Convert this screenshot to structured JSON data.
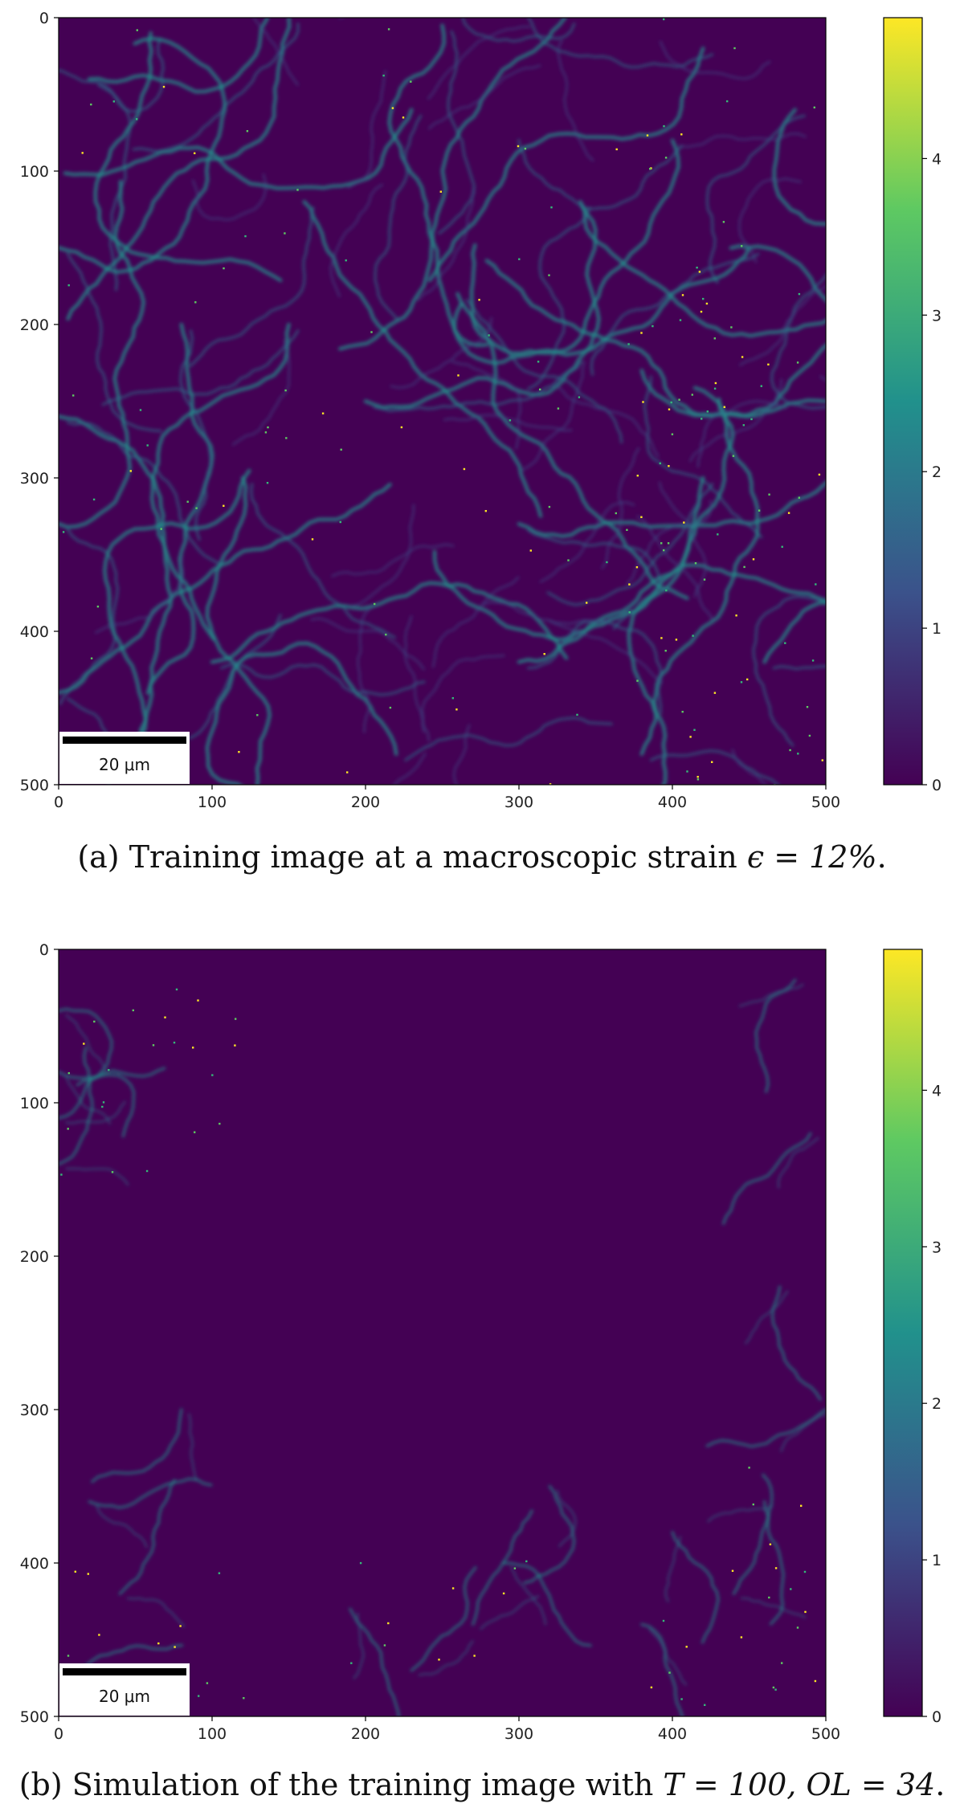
{
  "figures": [
    {
      "id": "a",
      "caption_prefix": "(a) Training image at a macroscopic strain ",
      "caption_math": "ϵ = 12%",
      "caption_suffix": ".",
      "scalebar_label": "20 μm",
      "field_variant": "training",
      "x_ticks": [
        "0",
        "100",
        "200",
        "300",
        "400",
        "500"
      ],
      "y_ticks": [
        "0",
        "100",
        "200",
        "300",
        "400",
        "500"
      ],
      "colorbar_ticks": [
        "0",
        "1",
        "2",
        "3",
        "4"
      ]
    },
    {
      "id": "b",
      "caption_prefix": "(b) Simulation of the training image with ",
      "caption_math": "T = 100, OL = 34",
      "caption_suffix": ".",
      "scalebar_label": "20 μm",
      "field_variant": "simulation",
      "x_ticks": [
        "0",
        "100",
        "200",
        "300",
        "400",
        "500"
      ],
      "y_ticks": [
        "0",
        "100",
        "200",
        "300",
        "400",
        "500"
      ],
      "colorbar_ticks": [
        "0",
        "1",
        "2",
        "3",
        "4"
      ]
    }
  ],
  "chart_data": [
    {
      "type": "heatmap",
      "title": "",
      "xlabel": "",
      "ylabel": "",
      "xlim": [
        0,
        500
      ],
      "ylim": [
        500,
        0
      ],
      "x_ticks": [
        0,
        100,
        200,
        300,
        400,
        500
      ],
      "y_ticks": [
        0,
        100,
        200,
        300,
        400,
        500
      ],
      "colorbar": {
        "colormap": "viridis",
        "range": [
          0,
          4.9
        ],
        "ticks": [
          0,
          1,
          2,
          3,
          4
        ]
      },
      "colors": {
        "low": "#440154",
        "mid": "#21918c",
        "high": "#fde725"
      },
      "note": "strain field image; background values near 0.3, bands up to ~4.9"
    },
    {
      "type": "heatmap",
      "title": "",
      "xlabel": "",
      "ylabel": "",
      "xlim": [
        0,
        500
      ],
      "ylim": [
        500,
        0
      ],
      "x_ticks": [
        0,
        100,
        200,
        300,
        400,
        500
      ],
      "y_ticks": [
        0,
        100,
        200,
        300,
        400,
        500
      ],
      "colorbar": {
        "colormap": "viridis",
        "range": [
          0,
          4.9
        ],
        "ticks": [
          0,
          1,
          2,
          3,
          4
        ]
      },
      "colors": {
        "low": "#440154",
        "mid": "#21918c",
        "high": "#fde725"
      },
      "note": "simulated strain field; mostly low values with sparse bands near edges"
    }
  ]
}
